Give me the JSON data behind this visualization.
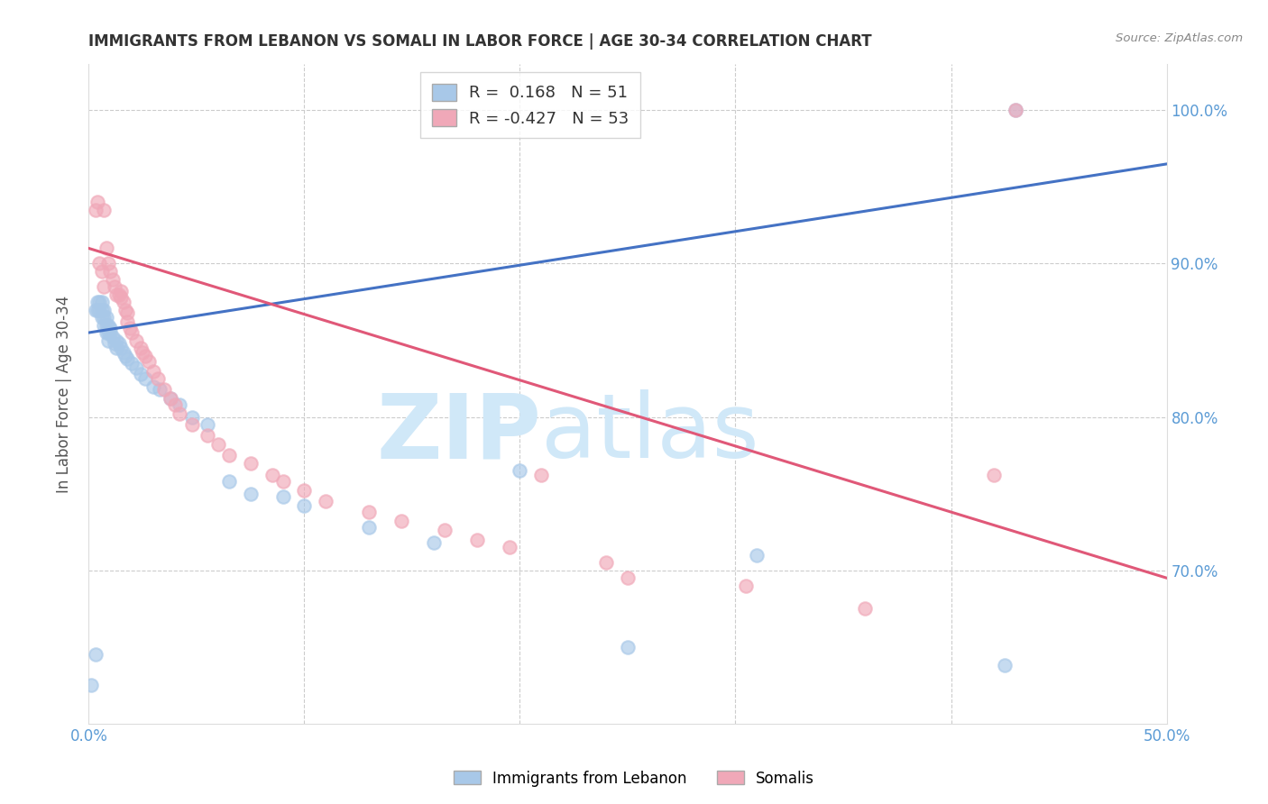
{
  "title": "IMMIGRANTS FROM LEBANON VS SOMALI IN LABOR FORCE | AGE 30-34 CORRELATION CHART",
  "source": "Source: ZipAtlas.com",
  "ylabel": "In Labor Force | Age 30-34",
  "xlim": [
    0.0,
    0.5
  ],
  "ylim": [
    0.6,
    1.03
  ],
  "xticks": [
    0.0,
    0.1,
    0.2,
    0.3,
    0.4,
    0.5
  ],
  "xticklabels": [
    "0.0%",
    "",
    "",
    "",
    "",
    "50.0%"
  ],
  "yticks": [
    0.7,
    0.8,
    0.9,
    1.0
  ],
  "yticklabels": [
    "70.0%",
    "80.0%",
    "90.0%",
    "100.0%"
  ],
  "R_lebanon": 0.168,
  "N_lebanon": 51,
  "R_somali": -0.427,
  "N_somali": 53,
  "blue_color": "#a8c8e8",
  "pink_color": "#f0a8b8",
  "blue_line_color": "#4472c4",
  "pink_line_color": "#e05878",
  "axis_color": "#5b9bd5",
  "watermark_color": "#d0e8f8",
  "lebanon_trendline": [
    0.855,
    0.965
  ],
  "somali_trendline": [
    0.91,
    0.695
  ],
  "lebanon_x": [
    0.001,
    0.003,
    0.003,
    0.004,
    0.004,
    0.005,
    0.005,
    0.006,
    0.006,
    0.006,
    0.007,
    0.007,
    0.007,
    0.008,
    0.008,
    0.008,
    0.009,
    0.009,
    0.009,
    0.01,
    0.01,
    0.011,
    0.012,
    0.013,
    0.013,
    0.014,
    0.015,
    0.016,
    0.017,
    0.018,
    0.02,
    0.022,
    0.024,
    0.026,
    0.03,
    0.033,
    0.038,
    0.042,
    0.048,
    0.055,
    0.065,
    0.075,
    0.09,
    0.1,
    0.13,
    0.16,
    0.2,
    0.25,
    0.31,
    0.425,
    0.43
  ],
  "lebanon_y": [
    0.625,
    0.645,
    0.87,
    0.87,
    0.875,
    0.875,
    0.87,
    0.865,
    0.87,
    0.875,
    0.865,
    0.86,
    0.87,
    0.855,
    0.86,
    0.865,
    0.85,
    0.855,
    0.86,
    0.855,
    0.858,
    0.852,
    0.848,
    0.845,
    0.85,
    0.848,
    0.845,
    0.842,
    0.84,
    0.838,
    0.835,
    0.832,
    0.828,
    0.825,
    0.82,
    0.818,
    0.812,
    0.808,
    0.8,
    0.795,
    0.758,
    0.75,
    0.748,
    0.742,
    0.728,
    0.718,
    0.765,
    0.65,
    0.71,
    0.638,
    1.0
  ],
  "somali_x": [
    0.003,
    0.004,
    0.005,
    0.006,
    0.007,
    0.007,
    0.008,
    0.009,
    0.01,
    0.011,
    0.012,
    0.013,
    0.014,
    0.015,
    0.015,
    0.016,
    0.017,
    0.018,
    0.018,
    0.019,
    0.02,
    0.022,
    0.024,
    0.025,
    0.026,
    0.028,
    0.03,
    0.032,
    0.035,
    0.038,
    0.04,
    0.042,
    0.048,
    0.055,
    0.06,
    0.065,
    0.075,
    0.085,
    0.09,
    0.1,
    0.11,
    0.13,
    0.145,
    0.165,
    0.18,
    0.195,
    0.21,
    0.24,
    0.25,
    0.305,
    0.36,
    0.42,
    0.43
  ],
  "somali_y": [
    0.935,
    0.94,
    0.9,
    0.895,
    0.885,
    0.935,
    0.91,
    0.9,
    0.895,
    0.89,
    0.885,
    0.88,
    0.88,
    0.882,
    0.878,
    0.875,
    0.87,
    0.862,
    0.868,
    0.858,
    0.855,
    0.85,
    0.845,
    0.842,
    0.84,
    0.836,
    0.83,
    0.825,
    0.818,
    0.812,
    0.808,
    0.802,
    0.795,
    0.788,
    0.782,
    0.775,
    0.77,
    0.762,
    0.758,
    0.752,
    0.745,
    0.738,
    0.732,
    0.726,
    0.72,
    0.715,
    0.762,
    0.705,
    0.695,
    0.69,
    0.675,
    0.762,
    1.0
  ]
}
